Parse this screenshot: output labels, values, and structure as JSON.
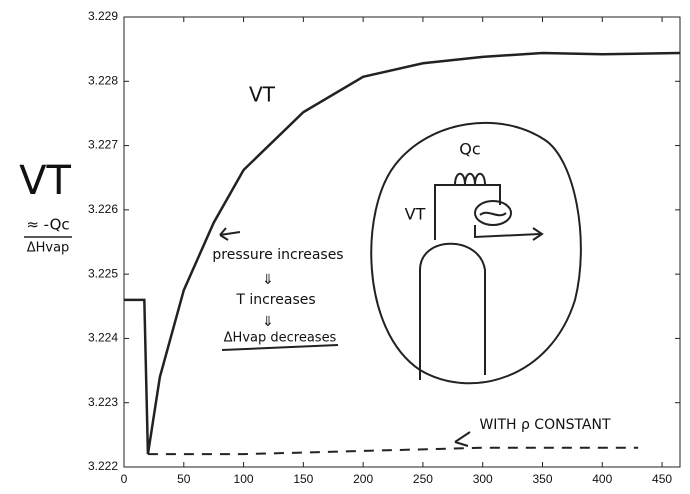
{
  "chart_data": {
    "type": "line",
    "xlim": [
      0,
      465
    ],
    "xticks": [
      0,
      50,
      100,
      150,
      200,
      250,
      300,
      350,
      400,
      450
    ],
    "ylim": [
      3.222,
      3.229
    ],
    "yticks": [
      3.222,
      3.223,
      3.224,
      3.225,
      3.226,
      3.227,
      3.228,
      3.229
    ],
    "ylabel": [
      "VT",
      "≈ -Qc",
      "ΔHvap"
    ],
    "series": [
      {
        "name": "VT",
        "color": "#222",
        "dashed": false,
        "x": [
          0,
          17,
          20,
          30,
          50,
          75,
          100,
          150,
          200,
          250,
          300,
          350,
          400,
          465
        ],
        "values": [
          3.2246,
          3.2246,
          3.2222,
          3.2234,
          3.22475,
          3.2258,
          3.22662,
          3.22752,
          3.22807,
          3.22828,
          3.22838,
          3.22844,
          3.22842,
          3.22844
        ]
      },
      {
        "name": "WITH ρ CONSTANT",
        "color": "#222",
        "dashed": true,
        "x": [
          20,
          100,
          200,
          300,
          430
        ],
        "values": [
          3.2222,
          3.2222,
          3.22225,
          3.2223,
          3.2223
        ]
      }
    ],
    "annotations": [
      "pressure increases",
      "⇓",
      "T increases",
      "⇓",
      "ΔHvap decreases",
      "Qc",
      "VT"
    ]
  }
}
